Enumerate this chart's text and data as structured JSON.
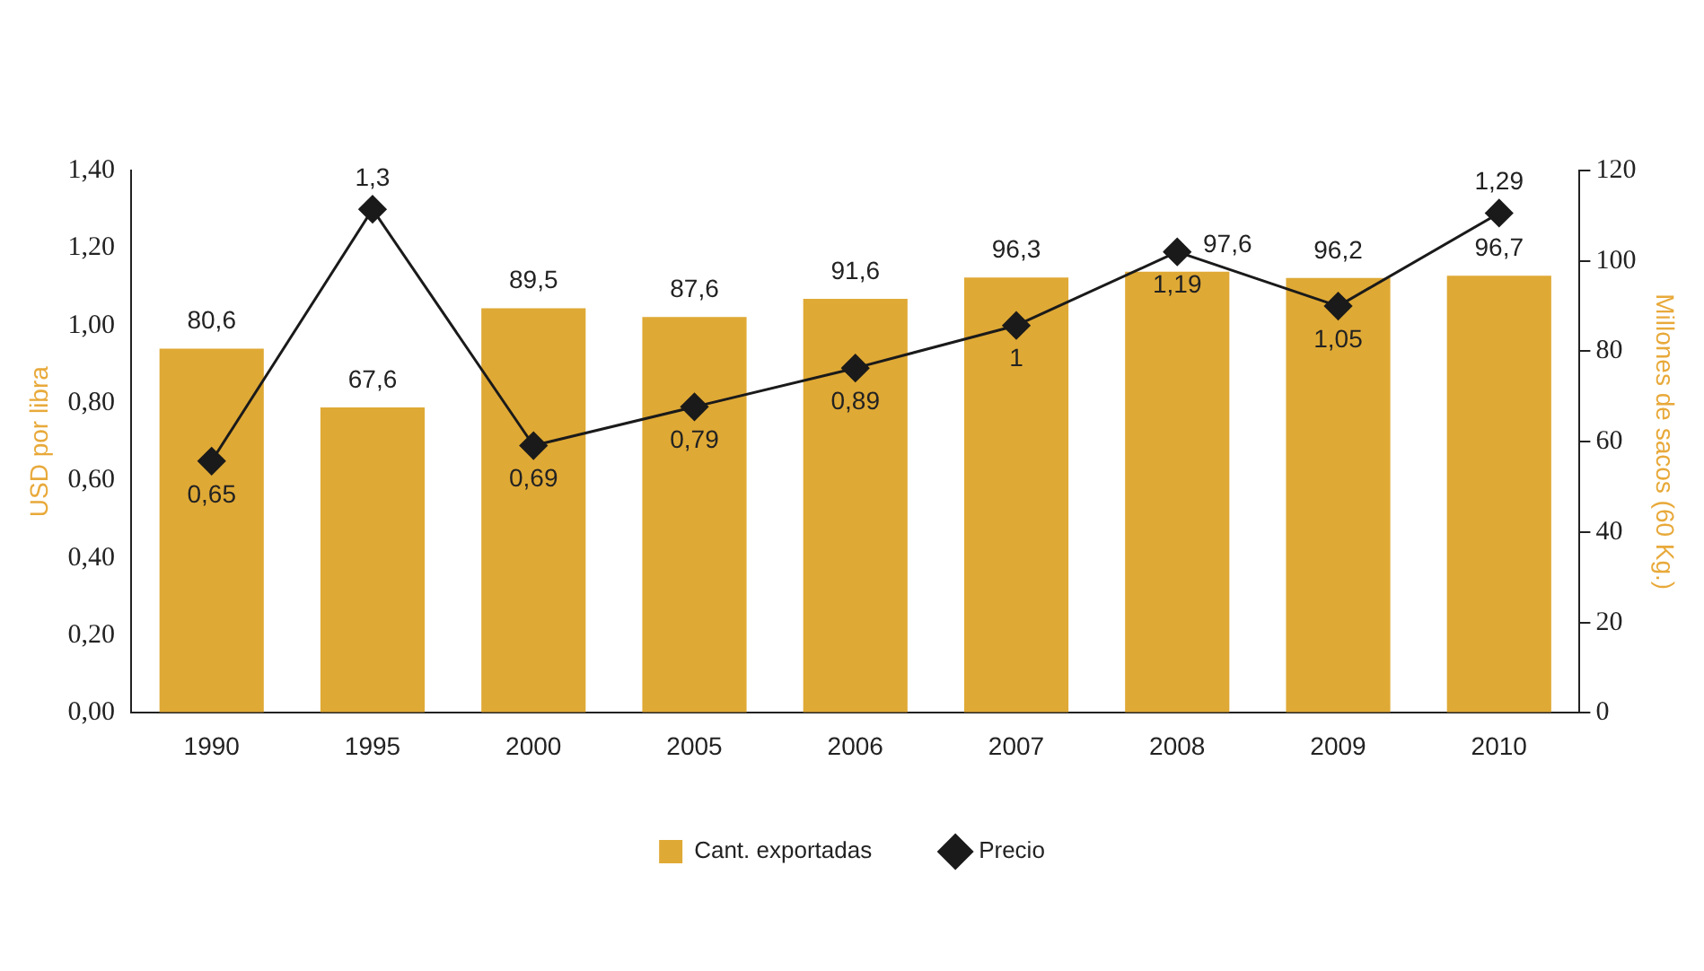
{
  "chart_data": {
    "type": "bar",
    "categories": [
      "1990",
      "1995",
      "2000",
      "2005",
      "2006",
      "2007",
      "2008",
      "2009",
      "2010"
    ],
    "series": [
      {
        "name": "Cant. exportadas",
        "axis": "y2",
        "color": "#dfa935",
        "values": [
          80.6,
          67.6,
          89.5,
          87.6,
          91.6,
          96.3,
          97.6,
          96.2,
          96.7
        ],
        "value_labels": [
          "80,6",
          "67,6",
          "89,5",
          "87,6",
          "91,6",
          "96,3",
          "97,6",
          "96,2",
          "96,7"
        ]
      },
      {
        "name": "Precio",
        "type": "line",
        "axis": "y",
        "color": "#1a1a1a",
        "values": [
          0.65,
          1.3,
          0.69,
          0.79,
          0.89,
          1,
          1.19,
          1.05,
          1.29
        ],
        "value_labels": [
          "0,65",
          "1,3",
          "0,69",
          "0,79",
          "0,89",
          "1",
          "1,19",
          "1,05",
          "1,29"
        ]
      }
    ],
    "ylabel": "USD por libra",
    "y2label": "Millones de sacos (60 Kg.)",
    "ylim": [
      0,
      1.4
    ],
    "yticks": [
      {
        "value": 0,
        "label": "0,00"
      },
      {
        "value": 0.2,
        "label": "0,20"
      },
      {
        "value": 0.4,
        "label": "0,40"
      },
      {
        "value": 0.6,
        "label": "0,60"
      },
      {
        "value": 0.8,
        "label": "0,80"
      },
      {
        "value": 1,
        "label": "1,00"
      },
      {
        "value": 1.2,
        "label": "1,20"
      },
      {
        "value": 1.4,
        "label": "1,40"
      }
    ],
    "y2lim": [
      0,
      120
    ],
    "y2ticks": [
      0,
      20,
      40,
      60,
      80,
      100,
      120
    ],
    "marker": "diamond",
    "legend": "bottom",
    "grid": false
  }
}
